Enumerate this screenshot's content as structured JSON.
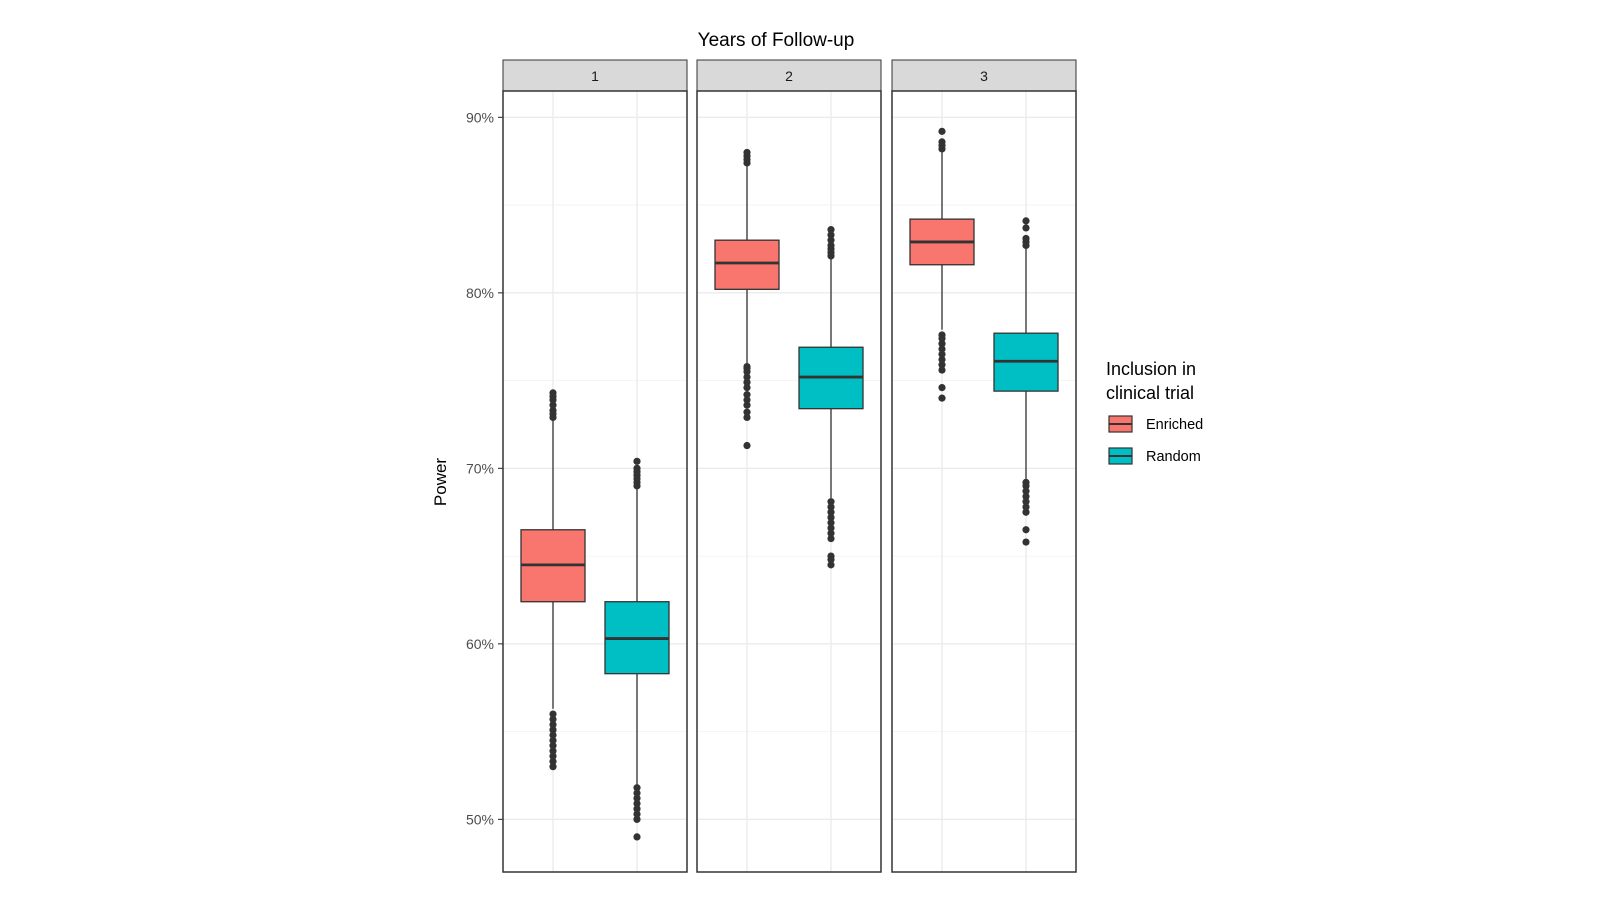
{
  "chart_data": {
    "type": "boxplot",
    "title": "Years of Follow-up",
    "ylabel": "Power",
    "ylim": [
      0.47,
      0.915
    ],
    "y_ticks": [
      0.5,
      0.6,
      0.7,
      0.8,
      0.9
    ],
    "y_tick_labels": [
      "50%",
      "60%",
      "70%",
      "80%",
      "90%"
    ],
    "grid": true,
    "legend": {
      "title_lines": [
        "Inclusion in",
        "clinical trial"
      ],
      "placement": "right"
    },
    "series": [
      {
        "name": "Enriched",
        "color": "#F8766D"
      },
      {
        "name": "Random",
        "color": "#00BFC4"
      }
    ],
    "facets": [
      {
        "label": "1",
        "boxes": [
          {
            "series": "Enriched",
            "q1": 0.624,
            "median": 0.645,
            "q3": 0.665,
            "whisker_low": 0.563,
            "whisker_high": 0.728,
            "outliers": [
              0.53,
              0.533,
              0.536,
              0.539,
              0.542,
              0.545,
              0.548,
              0.551,
              0.554,
              0.557,
              0.56,
              0.729,
              0.731,
              0.733,
              0.736,
              0.739,
              0.741,
              0.743
            ]
          },
          {
            "series": "Random",
            "q1": 0.583,
            "median": 0.603,
            "q3": 0.624,
            "whisker_low": 0.52,
            "whisker_high": 0.688,
            "outliers": [
              0.49,
              0.5,
              0.503,
              0.506,
              0.509,
              0.512,
              0.515,
              0.518,
              0.69,
              0.692,
              0.694,
              0.696,
              0.698,
              0.7,
              0.704
            ]
          }
        ]
      },
      {
        "label": "2",
        "boxes": [
          {
            "series": "Enriched",
            "q1": 0.802,
            "median": 0.817,
            "q3": 0.83,
            "whisker_low": 0.76,
            "whisker_high": 0.872,
            "outliers": [
              0.713,
              0.729,
              0.732,
              0.736,
              0.739,
              0.742,
              0.746,
              0.749,
              0.752,
              0.755,
              0.757,
              0.758,
              0.874,
              0.876,
              0.878,
              0.88
            ]
          },
          {
            "series": "Random",
            "q1": 0.734,
            "median": 0.752,
            "q3": 0.769,
            "whisker_low": 0.683,
            "whisker_high": 0.819,
            "outliers": [
              0.645,
              0.648,
              0.65,
              0.66,
              0.663,
              0.666,
              0.669,
              0.672,
              0.675,
              0.678,
              0.681,
              0.821,
              0.823,
              0.825,
              0.827,
              0.83,
              0.833,
              0.836
            ]
          }
        ]
      },
      {
        "label": "3",
        "boxes": [
          {
            "series": "Enriched",
            "q1": 0.816,
            "median": 0.829,
            "q3": 0.842,
            "whisker_low": 0.779,
            "whisker_high": 0.88,
            "outliers": [
              0.74,
              0.746,
              0.756,
              0.759,
              0.762,
              0.765,
              0.768,
              0.771,
              0.774,
              0.776,
              0.882,
              0.884,
              0.886,
              0.892
            ]
          },
          {
            "series": "Random",
            "q1": 0.744,
            "median": 0.761,
            "q3": 0.777,
            "whisker_low": 0.694,
            "whisker_high": 0.826,
            "outliers": [
              0.658,
              0.665,
              0.675,
              0.678,
              0.681,
              0.684,
              0.687,
              0.69,
              0.692,
              0.827,
              0.829,
              0.831,
              0.837,
              0.841
            ]
          }
        ]
      }
    ]
  }
}
